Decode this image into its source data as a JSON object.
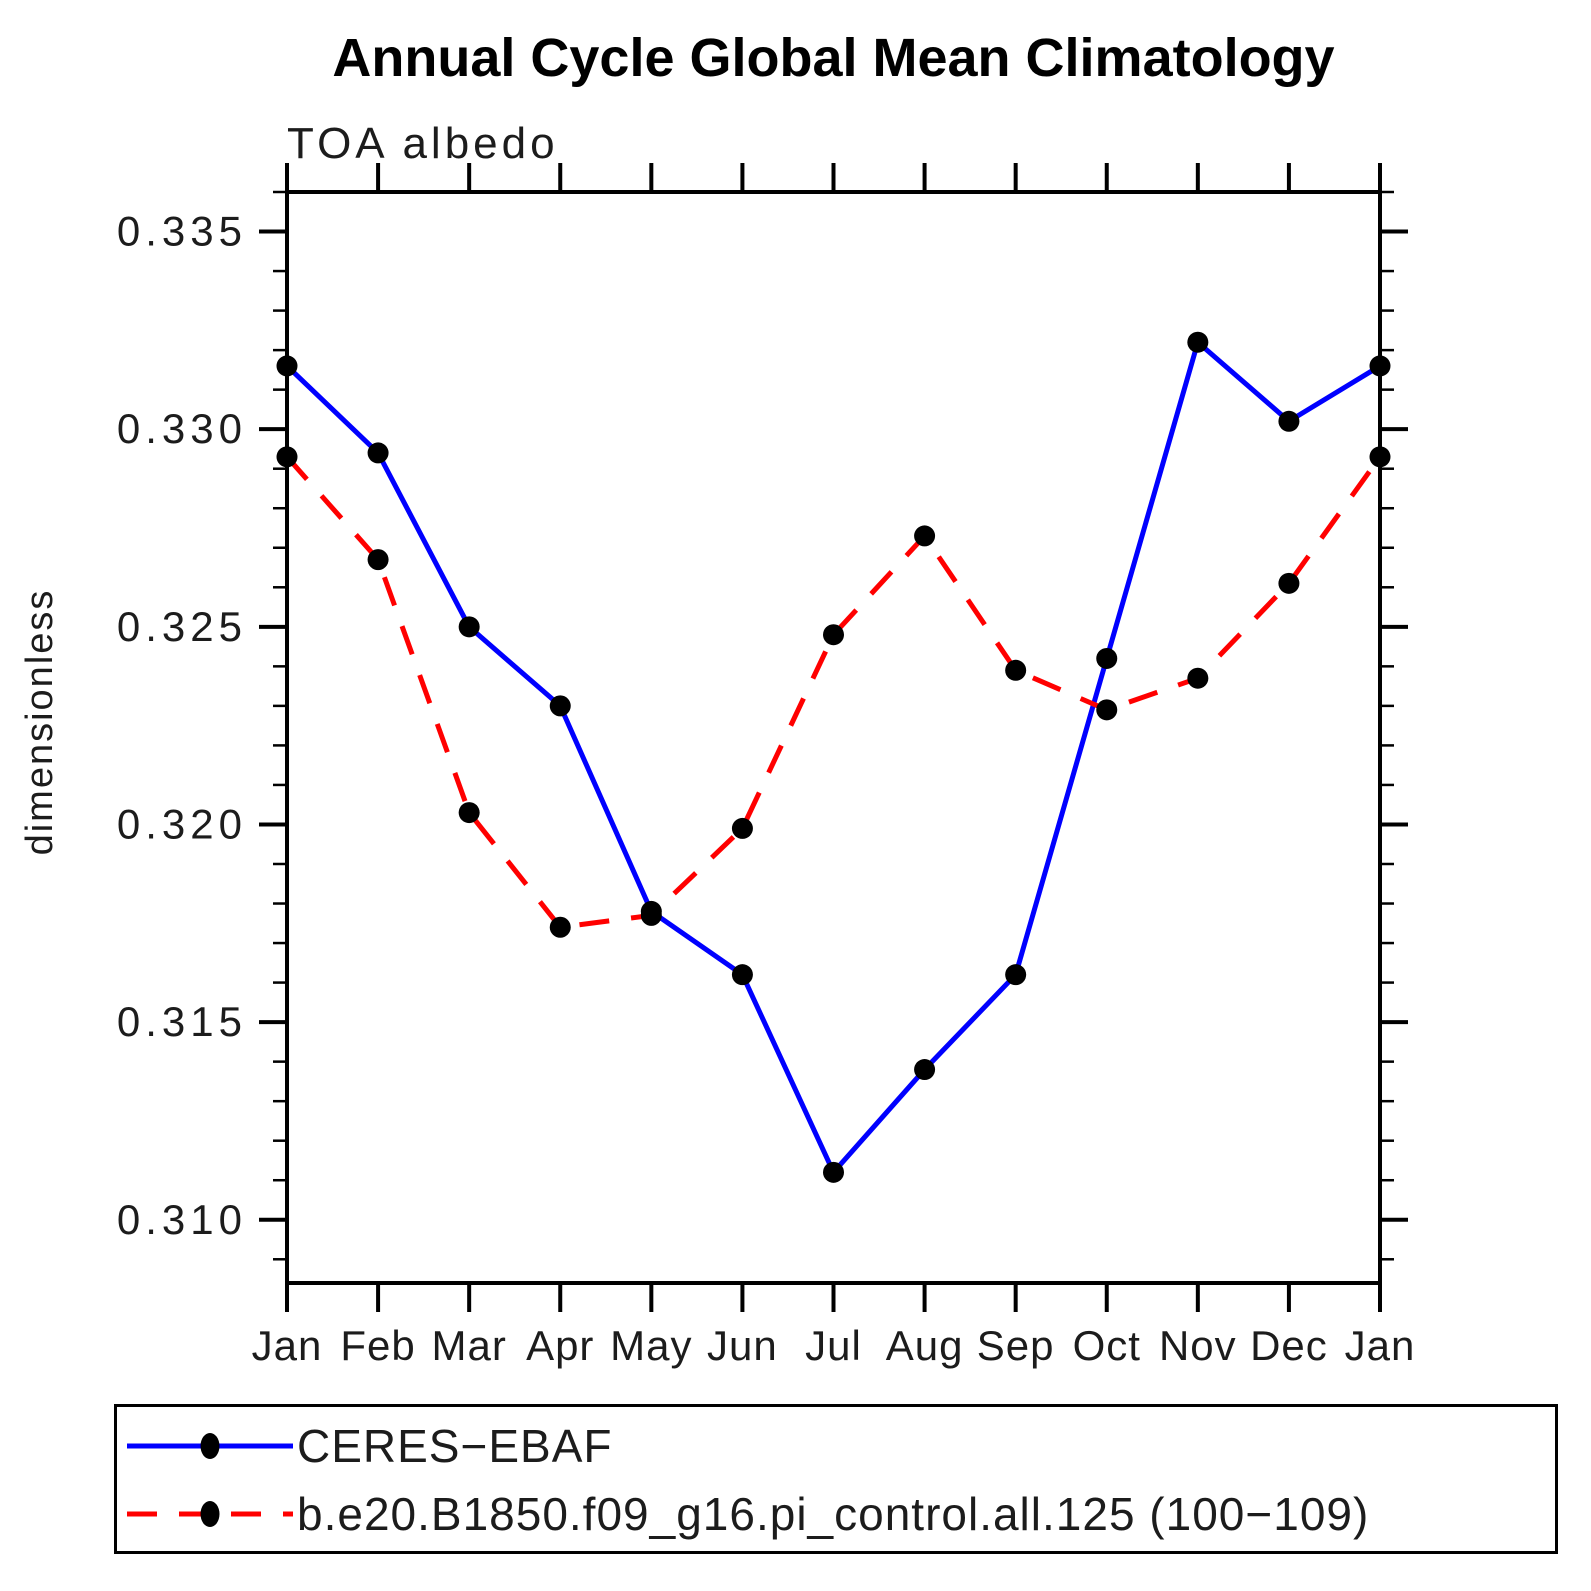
{
  "chart_data": {
    "type": "line",
    "title": "Annual Cycle Global Mean Climatology",
    "subtitle": "TOA albedo",
    "ylabel": "dimensionless",
    "xlabel": "",
    "x_categories": [
      "Jan",
      "Feb",
      "Mar",
      "Apr",
      "May",
      "Jun",
      "Jul",
      "Aug",
      "Sep",
      "Oct",
      "Nov",
      "Dec",
      "Jan"
    ],
    "ylim": [
      0.3084,
      0.336
    ],
    "y_major_ticks": [
      0.31,
      0.315,
      0.32,
      0.325,
      0.33,
      0.335
    ],
    "y_minor_step": 0.001,
    "y_tick_decimals": 3,
    "grid": "off",
    "legend_position": "bottom",
    "colors": {
      "axis": "#000000",
      "marker": "#000000",
      "ceres": "#0000ff",
      "model": "#ff0000"
    },
    "series": [
      {
        "name": "CERES−EBAF",
        "color": "#0000ff",
        "style": "solid",
        "marker": "circle",
        "values": [
          0.3316,
          0.3294,
          0.325,
          0.323,
          0.3178,
          0.3162,
          0.3112,
          0.3138,
          0.3162,
          0.3242,
          0.3322,
          0.3302,
          0.3316
        ]
      },
      {
        "name": "b.e20.B1850.f09_g16.pi_control.all.125 (100−109)",
        "color": "#ff0000",
        "style": "dashed",
        "marker": "circle",
        "values": [
          0.3293,
          0.3267,
          0.3203,
          0.3174,
          0.3177,
          0.3199,
          0.3248,
          0.3273,
          0.3239,
          0.3229,
          0.3237,
          0.3261,
          0.3293
        ]
      }
    ]
  }
}
